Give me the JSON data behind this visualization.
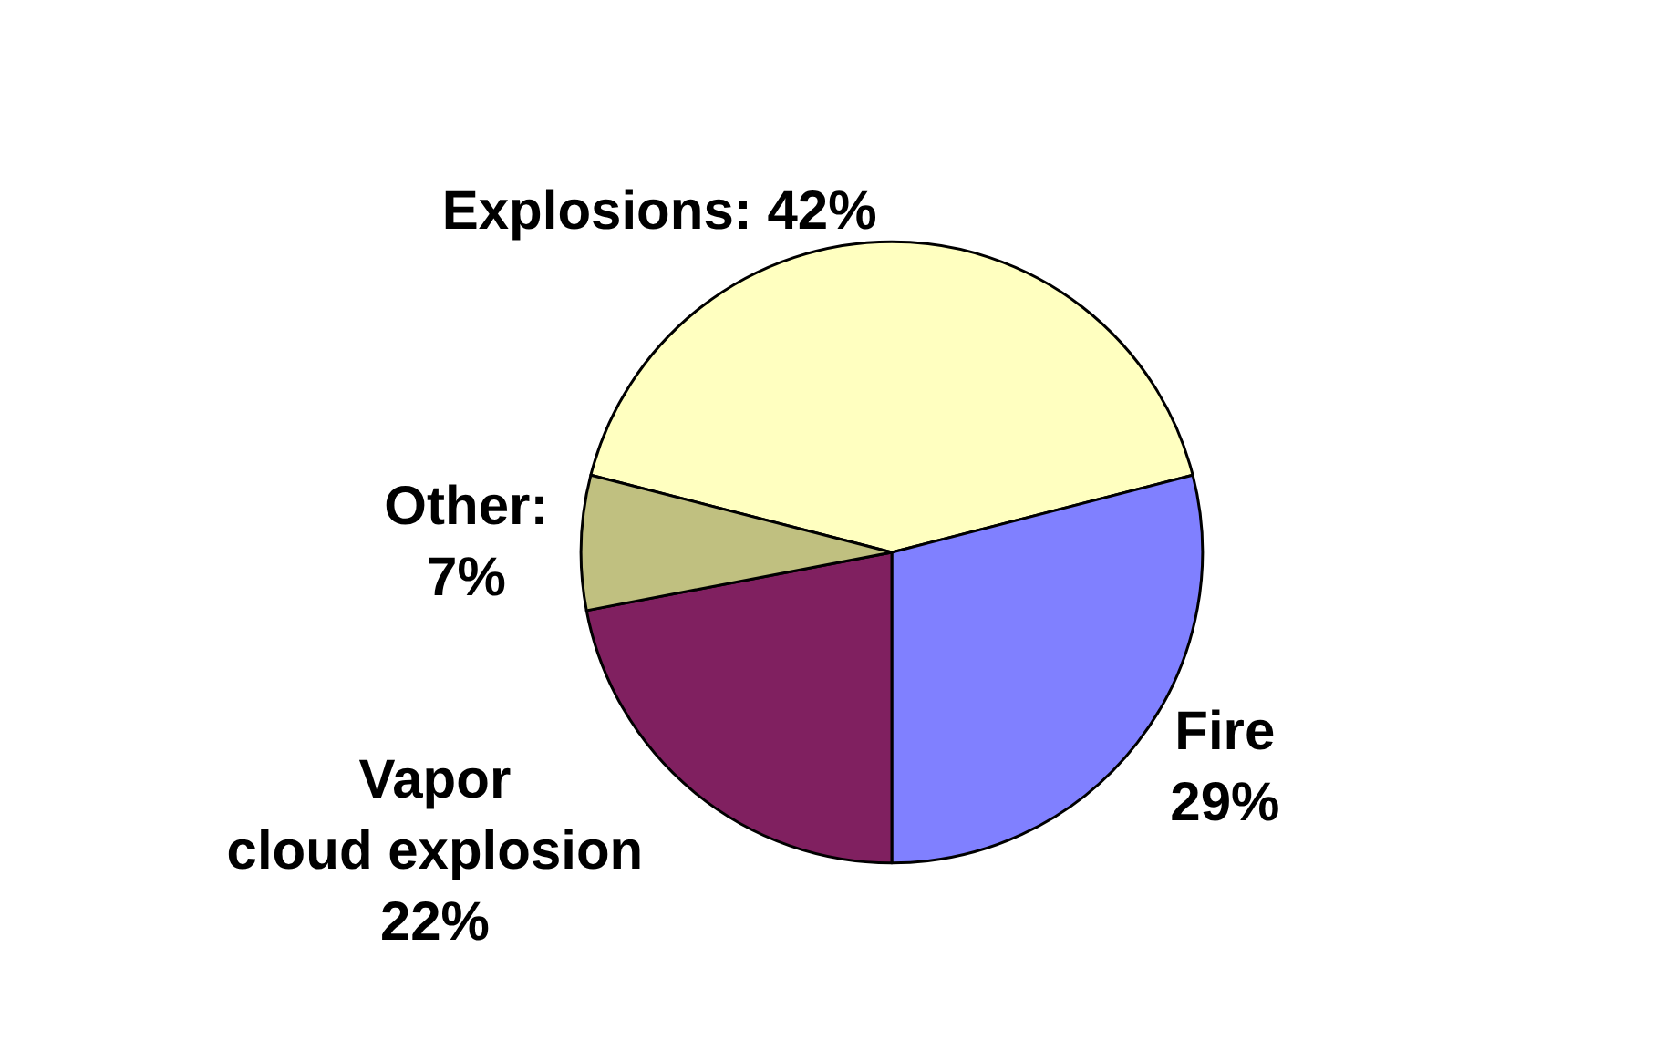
{
  "chart_data": {
    "type": "pie",
    "categories": [
      null,
      null,
      null,
      null
    ],
    "values": [
      42,
      29,
      22,
      7
    ],
    "colors": [
      "#ffffc0",
      "#8080ff",
      "#802060",
      "#c0c080"
    ],
    "value_labels": [
      "Explosions: 42%",
      "Fire\n29%",
      "Vapor\ncloud explosion\n22%",
      "Other:\n7%"
    ],
    "legend": false
  }
}
